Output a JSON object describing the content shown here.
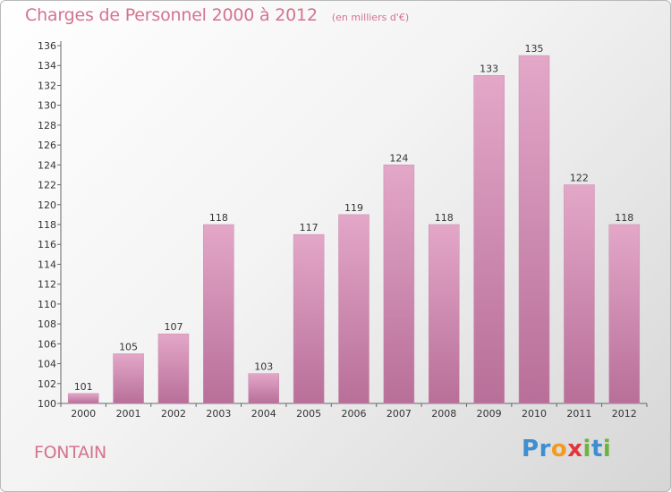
{
  "header": {
    "title": "Charges de Personnel 2000 à 2012",
    "subtitle": "(en milliers d'€)"
  },
  "footer": {
    "place": "FONTAIN",
    "logo_letters": [
      {
        "char": "P",
        "color": "#3d8fd1"
      },
      {
        "char": "r",
        "color": "#3d8fd1"
      },
      {
        "char": "o",
        "color": "#f39a1f"
      },
      {
        "char": "x",
        "color": "#e2343a"
      },
      {
        "char": "i",
        "color": "#6db33f"
      },
      {
        "char": "t",
        "color": "#3d8fd1"
      },
      {
        "char": "i",
        "color": "#6db33f"
      }
    ]
  },
  "chart_data": {
    "type": "bar",
    "categories": [
      "2000",
      "2001",
      "2002",
      "2003",
      "2004",
      "2005",
      "2006",
      "2007",
      "2008",
      "2009",
      "2010",
      "2011",
      "2012"
    ],
    "values": [
      101,
      105,
      107,
      118,
      103,
      117,
      119,
      124,
      118,
      133,
      135,
      122,
      118
    ],
    "ylim": [
      100,
      136
    ],
    "yticks": [
      100,
      102,
      104,
      106,
      108,
      110,
      112,
      114,
      116,
      118,
      120,
      122,
      124,
      126,
      128,
      130,
      132,
      134,
      136
    ],
    "grid": false,
    "bar_color": "#d98fb6",
    "bar_color_top": "#e3a7c8",
    "bar_color_bottom": "#b86f99"
  }
}
